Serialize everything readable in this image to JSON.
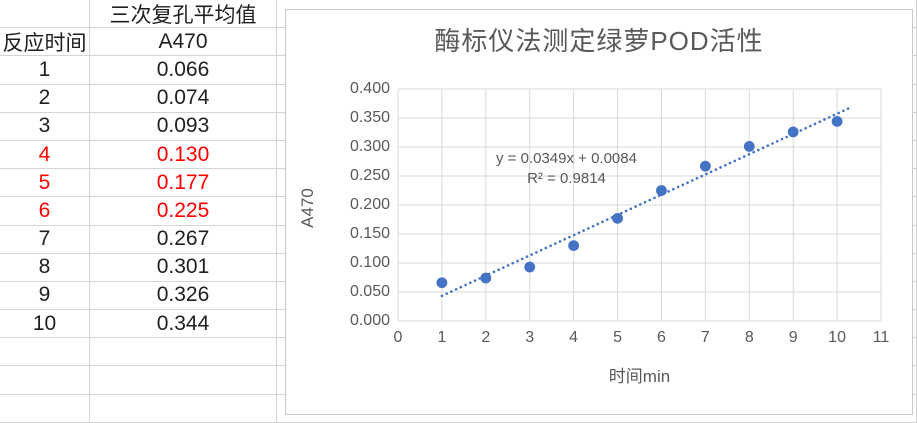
{
  "colors": {
    "marker_blue": "#4472C4",
    "trendline_blue": "#4472C4",
    "red_text": "#FF0000",
    "chart_text_gray": "#595959",
    "chart_gridline": "#D9D9D9",
    "chart_border": "#C9C9C9",
    "sheet_gridline": "#D4D4D4",
    "table_text": "#1F1F1F"
  },
  "table": {
    "merged_header": "三次复孔平均值",
    "col1_header": "反应时间",
    "col2_header": "A470",
    "rows": [
      {
        "time": "1",
        "a470": "0.066",
        "red": false
      },
      {
        "time": "2",
        "a470": "0.074",
        "red": false
      },
      {
        "time": "3",
        "a470": "0.093",
        "red": false
      },
      {
        "time": "4",
        "a470": "0.130",
        "red": true
      },
      {
        "time": "5",
        "a470": "0.177",
        "red": true
      },
      {
        "time": "6",
        "a470": "0.225",
        "red": true
      },
      {
        "time": "7",
        "a470": "0.267",
        "red": false
      },
      {
        "time": "8",
        "a470": "0.301",
        "red": false
      },
      {
        "time": "9",
        "a470": "0.326",
        "red": false
      },
      {
        "time": "10",
        "a470": "0.344",
        "red": false
      }
    ],
    "empty_row_count": 3
  },
  "chart_data": {
    "type": "scatter",
    "title": "酶标仪法测定绿萝POD活性",
    "xlabel": "时间min",
    "ylabel": "A470",
    "x": [
      1,
      2,
      3,
      4,
      5,
      6,
      7,
      8,
      9,
      10
    ],
    "y": [
      0.066,
      0.074,
      0.093,
      0.13,
      0.177,
      0.225,
      0.267,
      0.301,
      0.326,
      0.344
    ],
    "xlim": [
      0,
      11
    ],
    "ylim": [
      0.0,
      0.4
    ],
    "x_ticks": [
      "0",
      "1",
      "2",
      "3",
      "4",
      "5",
      "6",
      "7",
      "8",
      "9",
      "10",
      "11"
    ],
    "y_ticks": [
      "0.000",
      "0.050",
      "0.100",
      "0.150",
      "0.200",
      "0.250",
      "0.300",
      "0.350",
      "0.400"
    ],
    "grid": true,
    "legend": "none",
    "trendline": {
      "style": "dotted",
      "slope": 0.0349,
      "intercept": 0.0084,
      "x_start": 1,
      "x_end": 10.25,
      "equation": "y = 0.0349x + 0.0084",
      "r_squared": "R² = 0.9814"
    }
  }
}
